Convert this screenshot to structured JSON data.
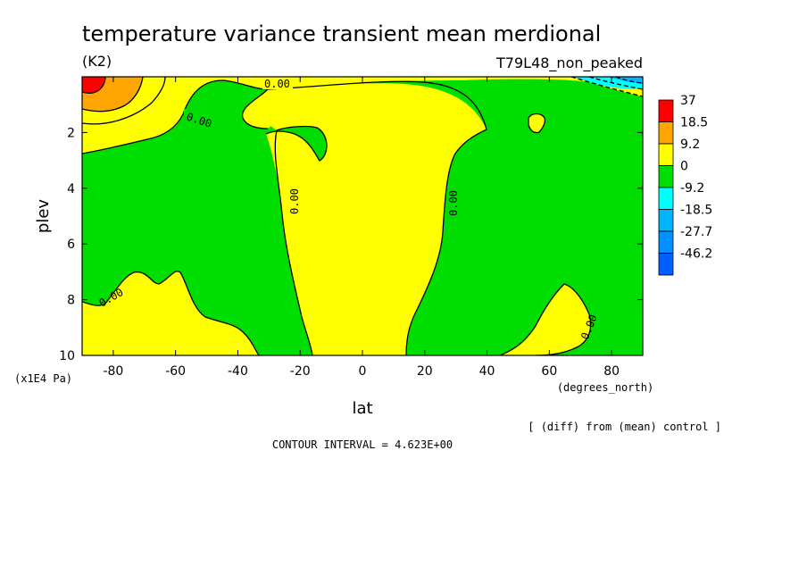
{
  "chart_data": {
    "type": "contour",
    "title": "temperature variance transient mean merdional",
    "units": "(K2)",
    "dataset_label": "T79L48_non_peaked",
    "xlabel": "lat",
    "xunits": "(degrees_north)",
    "ylabel": "plev",
    "yunits": "(x1E4 Pa)",
    "xlim": [
      -90,
      90
    ],
    "ylim": [
      10,
      0
    ],
    "x_ticks": [
      "-80",
      "-60",
      "-40",
      "-20",
      "0",
      "20",
      "40",
      "60",
      "80"
    ],
    "y_ticks": [
      "2",
      "4",
      "6",
      "8",
      "10"
    ],
    "contour_interval": "CONTOUR INTERVAL = 4.623E+00",
    "note": "[ (diff) from (mean) control ]",
    "contour_label": "0.00",
    "legend": {
      "placement": "right",
      "levels": [
        "37",
        "18.5",
        "9.2",
        "0",
        "-9.2",
        "-18.5",
        "-27.7",
        "-46.2"
      ],
      "colors": [
        "#ff0000",
        "#ffa500",
        "#ffff00",
        "#00dd00",
        "#00ffff",
        "#00b4ff",
        "#0090ff",
        "#0060ff"
      ]
    }
  }
}
